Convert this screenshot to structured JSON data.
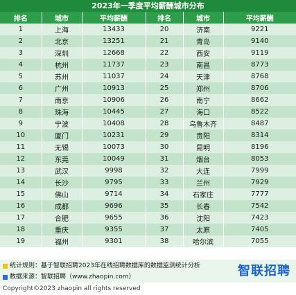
{
  "title": "2023年一季度平均薪酬城市分布",
  "headers": [
    "排名",
    "城市",
    "平均薪酬",
    "排名",
    "城市",
    "平均薪酬"
  ],
  "rows": [
    {
      "rank1": "1",
      "city1": "上海",
      "salary1": "13433",
      "rank2": "20",
      "city2": "济南",
      "salary2": "9221"
    },
    {
      "rank1": "2",
      "city1": "北京",
      "salary1": "13251",
      "rank2": "21",
      "city2": "青岛",
      "salary2": "9140"
    },
    {
      "rank1": "3",
      "city1": "深圳",
      "salary1": "12668",
      "rank2": "22",
      "city2": "西安",
      "salary2": "9119"
    },
    {
      "rank1": "4",
      "city1": "杭州",
      "salary1": "11737",
      "rank2": "23",
      "city2": "南昌",
      "salary2": "8773"
    },
    {
      "rank1": "5",
      "city1": "苏州",
      "salary1": "11037",
      "rank2": "24",
      "city2": "天津",
      "salary2": "8768"
    },
    {
      "rank1": "6",
      "city1": "广州",
      "salary1": "10913",
      "rank2": "25",
      "city2": "郑州",
      "salary2": "8706"
    },
    {
      "rank1": "7",
      "city1": "南京",
      "salary1": "10906",
      "rank2": "26",
      "city2": "南宁",
      "salary2": "8662"
    },
    {
      "rank1": "8",
      "city1": "珠海",
      "salary1": "10445",
      "rank2": "27",
      "city2": "海口",
      "salary2": "8522"
    },
    {
      "rank1": "9",
      "city1": "宁波",
      "salary1": "10408",
      "rank2": "28",
      "city2": "乌鲁木齐",
      "salary2": "8487"
    },
    {
      "rank1": "10",
      "city1": "厦门",
      "salary1": "10231",
      "rank2": "29",
      "city2": "贵阳",
      "salary2": "8314"
    },
    {
      "rank1": "11",
      "city1": "无锡",
      "salary1": "10073",
      "rank2": "30",
      "city2": "昆明",
      "salary2": "8196"
    },
    {
      "rank1": "12",
      "city1": "东莞",
      "salary1": "10049",
      "rank2": "31",
      "city2": "烟台",
      "salary2": "8053"
    },
    {
      "rank1": "13",
      "city1": "武汉",
      "salary1": "9998",
      "rank2": "32",
      "city2": "大连",
      "salary2": "7999"
    },
    {
      "rank1": "14",
      "city1": "长沙",
      "salary1": "9795",
      "rank2": "33",
      "city2": "兰州",
      "salary2": "7929"
    },
    {
      "rank1": "15",
      "city1": "佛山",
      "salary1": "9714",
      "rank2": "34",
      "city2": "石家庄",
      "salary2": "7777"
    },
    {
      "rank1": "16",
      "city1": "成都",
      "salary1": "9696",
      "rank2": "35",
      "city2": "长春",
      "salary2": "7542"
    },
    {
      "rank1": "17",
      "city1": "合肥",
      "salary1": "9655",
      "rank2": "36",
      "city2": "沈阳",
      "salary2": "7423"
    },
    {
      "rank1": "18",
      "city1": "重庆",
      "salary1": "9355",
      "rank2": "37",
      "city2": "太原",
      "salary2": "7405"
    },
    {
      "rank1": "19",
      "city1": "福州",
      "salary1": "9301",
      "rank2": "38",
      "city2": "哈尔滨",
      "salary2": "7055"
    }
  ],
  "footer": {
    "rule": "统计规则：基于智联招聘2023年在线招聘数据库的数据监测统计分析",
    "source": "数据来源：智联招聘（www.zhaopin.com）",
    "logo_text": "智联招聘",
    "copyright": "Copyright©2023 zhaopin all rights reserved",
    "rule_bullet_color": "#f4c20d",
    "source_bullet_color": "#2b6cd4"
  },
  "colors": {
    "title_bg": "#1f8a3b",
    "header_bg": "#2e9d4a",
    "row_light": "#dcefe0",
    "row_dark": "#c4e3cb",
    "logo": "#1d64c9"
  }
}
